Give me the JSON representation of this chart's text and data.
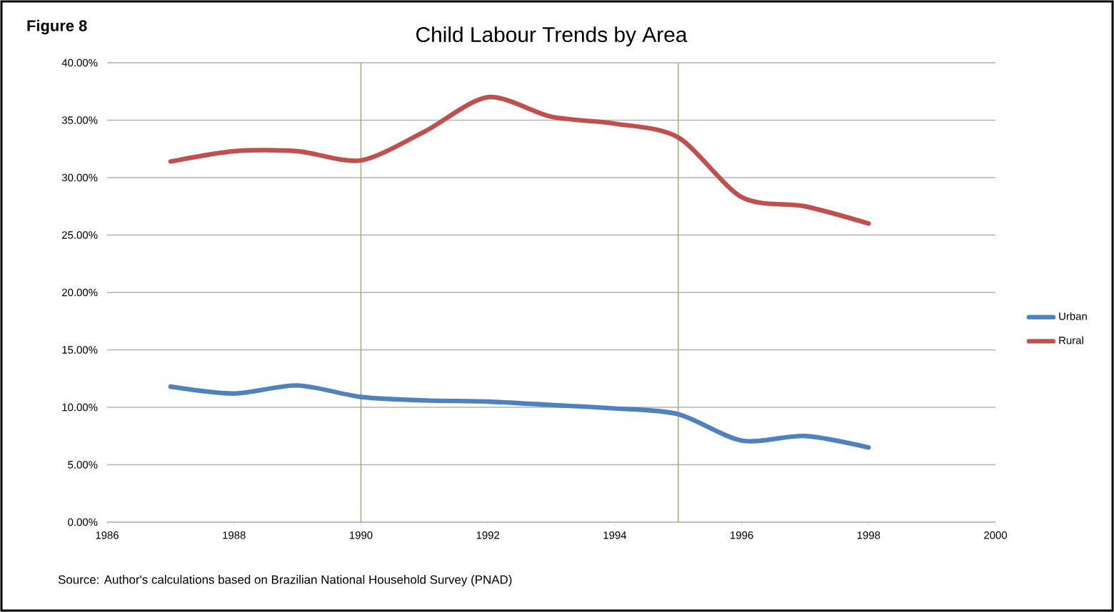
{
  "chart_data": {
    "type": "line",
    "title": "Child Labour Trends by Area",
    "x": [
      1987,
      1988,
      1989,
      1990,
      1991,
      1992,
      1993,
      1994,
      1995,
      1996,
      1997,
      1998
    ],
    "series": [
      {
        "name": "Urban",
        "color": "#4f81bd",
        "values": [
          11.8,
          11.2,
          11.9,
          10.9,
          10.6,
          10.5,
          10.2,
          9.9,
          9.4,
          7.1,
          7.5,
          6.5
        ]
      },
      {
        "name": "Rural",
        "color": "#c0504d",
        "values": [
          31.4,
          32.3,
          32.3,
          31.5,
          34.0,
          37.0,
          35.3,
          34.7,
          33.5,
          28.3,
          27.5,
          26.0
        ]
      }
    ],
    "xlim": [
      1986,
      2000
    ],
    "xticks": [
      1986,
      1988,
      1990,
      1992,
      1994,
      1996,
      1998,
      2000
    ],
    "ylim": [
      0,
      40
    ],
    "yticks": [
      {
        "value": 0,
        "label": "0.00%"
      },
      {
        "value": 5,
        "label": "5.00%"
      },
      {
        "value": 10,
        "label": "10.00%"
      },
      {
        "value": 15,
        "label": "15.00%"
      },
      {
        "value": 20,
        "label": "20.00%"
      },
      {
        "value": 25,
        "label": "25.00%"
      },
      {
        "value": 30,
        "label": "30.00%"
      },
      {
        "value": 35,
        "label": "35.00%"
      },
      {
        "value": 40,
        "label": "40.00%"
      }
    ],
    "ref_lines": [
      {
        "axis": "x",
        "value": 1990,
        "color": "#9bbb59"
      },
      {
        "axis": "x",
        "value": 1995,
        "color": "#9bbb59"
      }
    ],
    "grid": "y",
    "legend": "right",
    "marker": "none",
    "line_style": "solid",
    "annotations": [
      "Figure 8",
      "Source: Author's calculations based on Brazilian National Household Survey  (PNAD)"
    ]
  }
}
